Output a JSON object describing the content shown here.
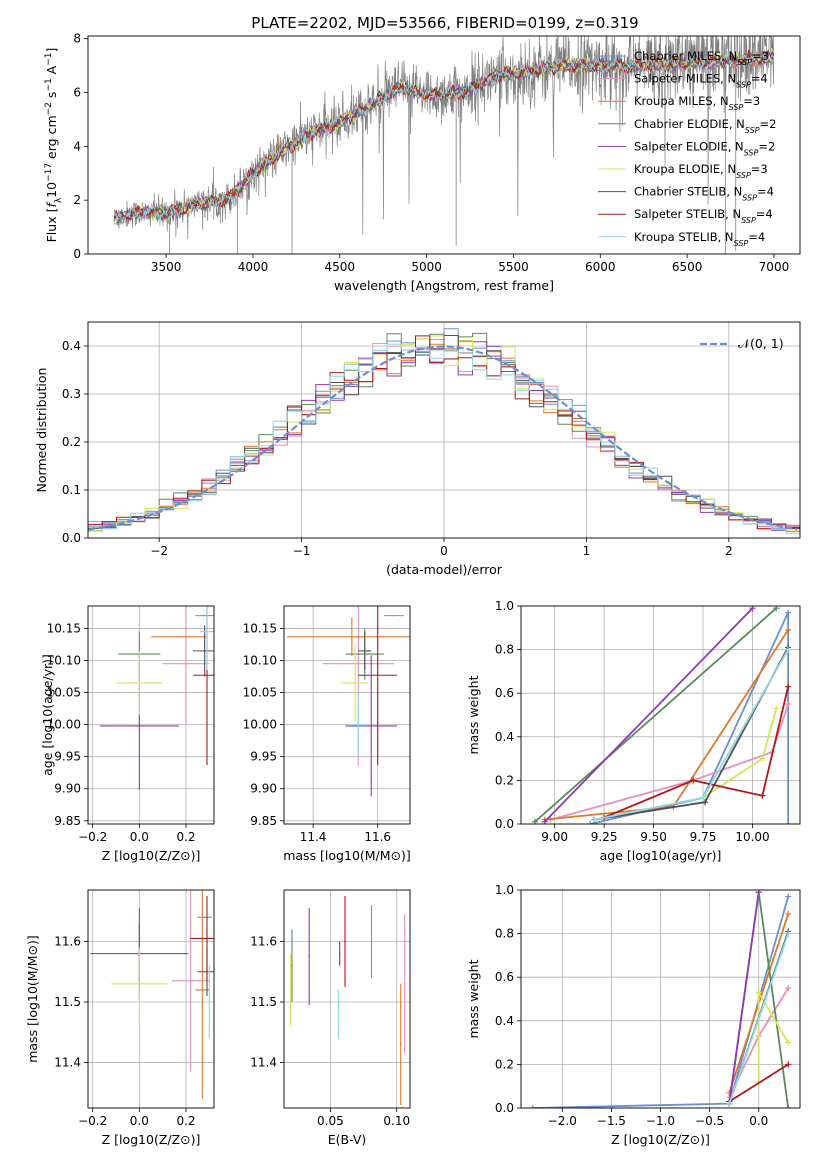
{
  "figure": {
    "title": "PLATE=2202, MJD=53566, FIBERID=0199, z=0.319"
  },
  "colors": {
    "Chabrier MILES": "#6b8fd6",
    "Salpeter MILES": "#e88fc0",
    "Kroupa MILES": "#b58a2e",
    "Chabrier ELODIE": "#5a8a5e",
    "Salpeter ELODIE": "#8e3ab5",
    "Kroupa ELODIE": "#d9e35a",
    "Chabrier STELIB": "#505050",
    "Salpeter STELIB": "#b01818",
    "Kroupa STELIB": "#8ed6e8",
    "orange": "#e0772a",
    "grid": "#b0b0b0"
  },
  "chart_data": [
    {
      "id": "spectrum",
      "type": "line",
      "xlabel": "wavelength [Angstrom, rest frame]",
      "ylabel_parts": [
        "Flux [",
        "f",
        "λ",
        "10",
        "−17",
        " erg cm",
        "−2",
        " s",
        "−1",
        " A",
        "−1",
        "]"
      ],
      "xlim": [
        3050,
        7150
      ],
      "ylim": [
        0,
        8.1
      ],
      "xticks": [
        3500,
        4000,
        4500,
        5000,
        5500,
        6000,
        6500,
        7000
      ],
      "yticks": [
        0,
        2,
        4,
        6,
        8
      ],
      "continuum": [
        [
          3200,
          1.3
        ],
        [
          3300,
          1.5
        ],
        [
          3500,
          1.55
        ],
        [
          3700,
          1.9
        ],
        [
          3850,
          2.0
        ],
        [
          3900,
          2.3
        ],
        [
          4000,
          3.0
        ],
        [
          4100,
          3.5
        ],
        [
          4300,
          4.4
        ],
        [
          4500,
          4.9
        ],
        [
          4700,
          5.6
        ],
        [
          4850,
          6.2
        ],
        [
          5000,
          5.9
        ],
        [
          5200,
          6.0
        ],
        [
          5400,
          6.6
        ],
        [
          5600,
          6.8
        ],
        [
          5800,
          7.0
        ],
        [
          6000,
          7.0
        ],
        [
          6200,
          7.0
        ],
        [
          6500,
          7.1
        ],
        [
          6800,
          7.2
        ],
        [
          7000,
          7.3
        ]
      ],
      "legend": [
        {
          "label": "Chabrier MILES, N",
          "sub": "SSP",
          "n": "=3",
          "color_key": "Chabrier MILES"
        },
        {
          "label": "Salpeter MILES, N",
          "sub": "SSP",
          "n": "=4",
          "color_key": "Salpeter MILES"
        },
        {
          "label": "Kroupa MILES, N",
          "sub": "SSP",
          "n": "=3",
          "color_key": "Kroupa MILES"
        },
        {
          "label": "Chabrier ELODIE, N",
          "sub": "SSP",
          "n": "=2",
          "color_key": "Chabrier ELODIE"
        },
        {
          "label": "Salpeter ELODIE, N",
          "sub": "SSP",
          "n": "=2",
          "color_key": "Salpeter ELODIE"
        },
        {
          "label": "Kroupa ELODIE, N",
          "sub": "SSP",
          "n": "=3",
          "color_key": "Kroupa ELODIE"
        },
        {
          "label": "Chabrier STELIB, N",
          "sub": "SSP",
          "n": "=4",
          "color_key": "Chabrier STELIB"
        },
        {
          "label": "Salpeter STELIB, N",
          "sub": "SSP",
          "n": "=4",
          "color_key": "Salpeter STELIB"
        },
        {
          "label": "Kroupa STELIB, N",
          "sub": "SSP",
          "n": "=4",
          "color_key": "Kroupa STELIB"
        }
      ]
    },
    {
      "id": "residuals",
      "type": "histogram",
      "xlabel": "(data-model)/error",
      "ylabel": "Normed distribution",
      "xlim": [
        -2.5,
        2.5
      ],
      "ylim": [
        0,
        0.45
      ],
      "xticks": [
        -2,
        -1,
        0,
        1,
        2
      ],
      "yticks": [
        0.0,
        0.1,
        0.2,
        0.3,
        0.4
      ],
      "grid": true,
      "legend_label": "𝒩(0, 1)",
      "legend_position": "top-right",
      "bin_edges": [
        -2.5,
        2.5
      ],
      "bin_width": 0.1
    },
    {
      "id": "age_vs_Z",
      "type": "errorbar",
      "xlabel": "Z [log10(Z/Z⊙)]",
      "ylabel": "age  [log10(age/yr)]",
      "xlim": [
        -0.22,
        0.32
      ],
      "ylim": [
        9.845,
        10.185
      ],
      "xticks": [
        -0.2,
        0.0,
        0.2
      ],
      "yticks": [
        9.85,
        9.9,
        9.95,
        10.0,
        10.05,
        10.1,
        10.15
      ],
      "points": [
        {
          "k": "Chabrier MILES",
          "x": 0.28,
          "xe": 0.04,
          "y": 10.17,
          "ye": 0.0
        },
        {
          "k": "Salpeter MILES",
          "x": 0.2,
          "xe": 0.1,
          "y": 10.095,
          "ye": 0.095
        },
        {
          "k": "Kroupa MILES",
          "x": 0.17,
          "xe": 0.12,
          "y": 10.137,
          "ye": 0.0
        },
        {
          "k": "Chabrier ELODIE",
          "x": 0.0,
          "xe": 0.09,
          "y": 10.11,
          "ye": 0.035
        },
        {
          "k": "Salpeter ELODIE",
          "x": 0.0,
          "xe": 0.17,
          "y": 9.998,
          "ye": 0.1
        },
        {
          "k": "Kroupa ELODIE",
          "x": 0.0,
          "xe": 0.1,
          "y": 10.065,
          "ye": 0.05
        },
        {
          "k": "Chabrier STELIB",
          "x": 0.28,
          "xe": 0.05,
          "y": 10.115,
          "ye": 0.04
        },
        {
          "k": "Salpeter STELIB",
          "x": 0.29,
          "xe": 0.06,
          "y": 10.077,
          "ye": 0.14
        },
        {
          "k": "Kroupa STELIB",
          "x": 0.29,
          "xe": 0.03,
          "y": 10.145,
          "ye": 0.06
        }
      ]
    },
    {
      "id": "age_vs_mass",
      "type": "errorbar",
      "xlabel": "mass [log10(M/M⊙)]",
      "xlim": [
        11.31,
        11.7
      ],
      "ylim": [
        9.845,
        10.185
      ],
      "xticks": [
        11.4,
        11.6
      ],
      "yticks": [
        9.85,
        9.9,
        9.95,
        10.0,
        10.05,
        10.1,
        10.15
      ],
      "points": [
        {
          "k": "Chabrier MILES",
          "x": 11.65,
          "xe": 0.03,
          "y": 10.17,
          "ye": 0.0
        },
        {
          "k": "Salpeter MILES",
          "x": 11.54,
          "xe": 0.11,
          "y": 10.095,
          "ye": 0.16
        },
        {
          "k": "Kroupa MILES",
          "x": 11.52,
          "xe": 0.2,
          "y": 10.137,
          "ye": 0.03
        },
        {
          "k": "Chabrier ELODIE",
          "x": 11.56,
          "xe": 0.06,
          "y": 10.11,
          "ye": 0.04
        },
        {
          "k": "Salpeter ELODIE",
          "x": 11.58,
          "xe": 0.08,
          "y": 9.998,
          "ye": 0.11
        },
        {
          "k": "Kroupa ELODIE",
          "x": 11.53,
          "xe": 0.04,
          "y": 10.065,
          "ye": 0.06
        },
        {
          "k": "Chabrier STELIB",
          "x": 11.56,
          "xe": 0.02,
          "y": 10.115,
          "ye": 0.03
        },
        {
          "k": "Salpeter STELIB",
          "x": 11.6,
          "xe": 0.06,
          "y": 10.077,
          "ye": 0.14
        },
        {
          "k": "Kroupa STELIB",
          "x": 11.54,
          "xe": 0.02,
          "y": 10.0,
          "ye": 0.05
        }
      ]
    },
    {
      "id": "massweight_vs_age",
      "type": "line",
      "xlabel": "age  [log10(age/yr)]",
      "ylabel": "mass weight",
      "xlim": [
        8.83,
        10.24
      ],
      "ylim": [
        0,
        1.0
      ],
      "xticks": [
        9.0,
        9.25,
        9.5,
        9.75,
        10.0
      ],
      "yticks": [
        0.0,
        0.2,
        0.4,
        0.6,
        0.8,
        1.0
      ],
      "grid": true,
      "series": [
        {
          "k": "Chabrier MILES",
          "x": [
            9.18,
            9.75,
            10.18,
            10.18
          ],
          "y": [
            0.0,
            0.12,
            0.97,
            0.0
          ]
        },
        {
          "k": "Salpeter MILES",
          "x": [
            8.98,
            9.7,
            10.1,
            10.18
          ],
          "y": [
            0.02,
            0.2,
            0.33,
            0.55
          ]
        },
        {
          "k": "Kroupa MILES",
          "x": [
            8.95,
            9.6,
            10.18
          ],
          "y": [
            0.02,
            0.08,
            0.89
          ]
        },
        {
          "k": "Chabrier ELODIE",
          "x": [
            8.9,
            10.12
          ],
          "y": [
            0.01,
            0.99
          ]
        },
        {
          "k": "Salpeter ELODIE",
          "x": [
            8.95,
            10.0
          ],
          "y": [
            0.01,
            0.99
          ]
        },
        {
          "k": "Kroupa ELODIE",
          "x": [
            9.75,
            10.05,
            10.12
          ],
          "y": [
            0.12,
            0.3,
            0.53
          ]
        },
        {
          "k": "Chabrier STELIB",
          "x": [
            9.2,
            9.76,
            10.18
          ],
          "y": [
            0.02,
            0.1,
            0.81
          ]
        },
        {
          "k": "Salpeter STELIB",
          "x": [
            9.25,
            9.7,
            10.05,
            10.18
          ],
          "y": [
            0.03,
            0.2,
            0.13,
            0.63
          ]
        },
        {
          "k": "Kroupa STELIB",
          "x": [
            9.2,
            9.75,
            10.18
          ],
          "y": [
            0.02,
            0.12,
            0.8
          ]
        }
      ]
    },
    {
      "id": "mass_vs_Z",
      "type": "errorbar",
      "xlabel": "Z [log10(Z/Z⊙)]",
      "ylabel": "mass [log10(M/M⊙)]",
      "xlim": [
        -0.22,
        0.32
      ],
      "ylim": [
        11.325,
        11.685
      ],
      "xticks": [
        -0.2,
        0.0,
        0.2
      ],
      "yticks": [
        11.4,
        11.5,
        11.6
      ],
      "points": [
        {
          "k": "Chabrier MILES",
          "x": 0.28,
          "xe": 0.03,
          "y": 11.64,
          "ye": 0.0
        },
        {
          "k": "Salpeter MILES",
          "x": 0.22,
          "xe": 0.08,
          "y": 11.535,
          "ye": 0.15
        },
        {
          "k": "Kroupa MILES",
          "x": 0.27,
          "xe": 0.03,
          "y": 11.52,
          "ye": 0.18
        },
        {
          "k": "Chabrier ELODIE",
          "x": 0.0,
          "xe": 0.0,
          "y": 11.58,
          "ye": 0.05
        },
        {
          "k": "Salpeter ELODIE",
          "x": 0.0,
          "xe": 0.21,
          "y": 11.58,
          "ye": 0.075
        },
        {
          "k": "Kroupa ELODIE",
          "x": 0.0,
          "xe": 0.12,
          "y": 11.53,
          "ye": 0.06
        },
        {
          "k": "Chabrier STELIB",
          "x": 0.29,
          "xe": 0.04,
          "y": 11.55,
          "ye": 0.04
        },
        {
          "k": "Salpeter STELIB",
          "x": 0.29,
          "xe": 0.07,
          "y": 11.605,
          "ye": 0.07
        },
        {
          "k": "Kroupa STELIB",
          "x": 0.3,
          "xe": 0.0,
          "y": 11.5,
          "ye": 0.06
        }
      ]
    },
    {
      "id": "mass_vs_ebv",
      "type": "errorbar",
      "xlabel": "E(B-V)",
      "xlim": [
        0.015,
        0.11
      ],
      "ylim": [
        11.325,
        11.685
      ],
      "xticks": [
        0.05,
        0.1
      ],
      "yticks": [
        11.4,
        11.5,
        11.6
      ],
      "points": [
        {
          "k": "Chabrier MILES",
          "x": 0.081,
          "xe": 0,
          "y": 11.6,
          "ye": 0.06
        },
        {
          "k": "Salpeter MILES",
          "x": 0.106,
          "xe": 0,
          "y": 11.53,
          "ye": 0.115
        },
        {
          "k": "Kroupa MILES",
          "x": 0.103,
          "xe": 0,
          "y": 11.43,
          "ye": 0.1
        },
        {
          "k": "Chabrier ELODIE",
          "x": 0.021,
          "xe": 0,
          "y": 11.56,
          "ye": 0.06
        },
        {
          "k": "Salpeter ELODIE",
          "x": 0.034,
          "xe": 0,
          "y": 11.575,
          "ye": 0.08
        },
        {
          "k": "Kroupa ELODIE",
          "x": 0.02,
          "xe": 0,
          "y": 11.52,
          "ye": 0.06
        },
        {
          "k": "Chabrier STELIB",
          "x": 0.057,
          "xe": 0,
          "y": 11.58,
          "ye": 0.02
        },
        {
          "k": "Salpeter STELIB",
          "x": 0.061,
          "xe": 0,
          "y": 11.6,
          "ye": 0.075
        },
        {
          "k": "Kroupa STELIB",
          "x": 0.056,
          "xe": 0,
          "y": 11.48,
          "ye": 0.04
        }
      ]
    },
    {
      "id": "massweight_vs_Z",
      "type": "line",
      "xlabel": "Z [log10(Z/Z⊙)]",
      "ylabel": "mass weight",
      "xlim": [
        -2.42,
        0.42
      ],
      "ylim": [
        0,
        1.0
      ],
      "xticks": [
        -2.0,
        -1.5,
        -1.0,
        -0.5,
        0.0
      ],
      "yticks": [
        0.0,
        0.2,
        0.4,
        0.6,
        0.8,
        1.0
      ],
      "grid": true,
      "series": [
        {
          "k": "Chabrier MILES",
          "x": [
            -2.3,
            -0.3,
            0.3
          ],
          "y": [
            0.0,
            0.02,
            0.97
          ]
        },
        {
          "k": "Salpeter MILES",
          "x": [
            -0.3,
            0.0,
            0.3
          ],
          "y": [
            0.05,
            0.33,
            0.55
          ]
        },
        {
          "k": "Kroupa MILES",
          "x": [
            -0.3,
            0.3
          ],
          "y": [
            0.07,
            0.89
          ]
        },
        {
          "k": "Chabrier ELODIE",
          "x": [
            -0.3,
            0.0,
            0.3
          ],
          "y": [
            0.02,
            0.99,
            0.0
          ]
        },
        {
          "k": "Salpeter ELODIE",
          "x": [
            -0.3,
            0.0
          ],
          "y": [
            0.02,
            0.99
          ]
        },
        {
          "k": "Kroupa ELODIE",
          "x": [
            0.0,
            0.0,
            0.3
          ],
          "y": [
            0.12,
            0.53,
            0.3
          ]
        },
        {
          "k": "Chabrier STELIB",
          "x": [
            -0.3,
            0.3
          ],
          "y": [
            0.02,
            0.81
          ]
        },
        {
          "k": "Salpeter STELIB",
          "x": [
            -0.3,
            0.3
          ],
          "y": [
            0.03,
            0.2
          ]
        },
        {
          "k": "Kroupa STELIB",
          "x": [
            -0.3,
            0.3
          ],
          "y": [
            0.02,
            0.8
          ]
        }
      ]
    }
  ]
}
